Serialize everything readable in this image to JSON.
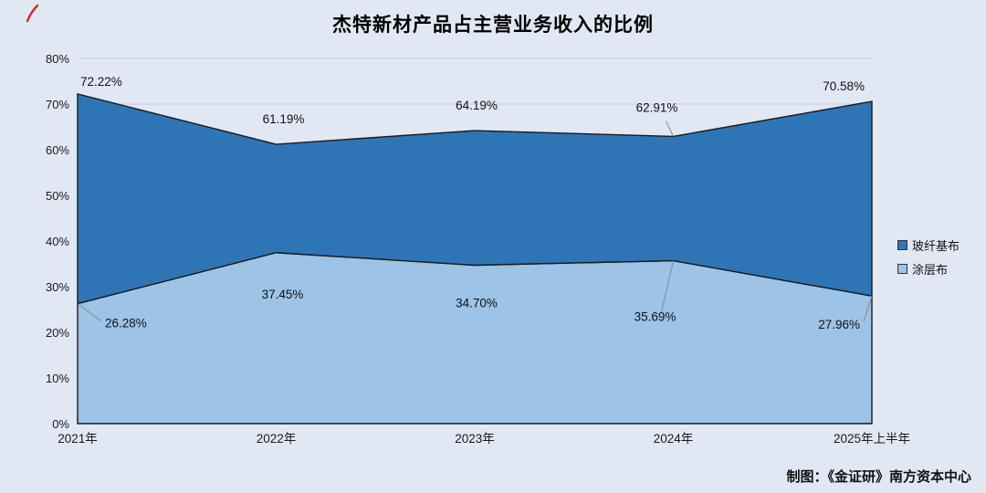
{
  "title": "杰特新材产品占主营业务收入的比例",
  "credit": "制图：《金证研》南方资本中心",
  "colors": {
    "background": "#e1e8f4",
    "grid": "#c7d0e2",
    "line": "#1a1a1a",
    "leader": "#808a99",
    "accent_red": "#d6281e"
  },
  "chart_data": {
    "type": "area",
    "title": "杰特新材产品占主营业务收入的比例",
    "categories": [
      "2021年",
      "2022年",
      "2023年",
      "2024年",
      "2025年上半年"
    ],
    "series": [
      {
        "name": "玻纤基布",
        "color": "#2e75b6",
        "values": [
          72.22,
          61.19,
          64.19,
          62.91,
          70.58
        ],
        "labels": [
          "72.22%",
          "61.19%",
          "64.19%",
          "62.91%",
          "70.58%"
        ]
      },
      {
        "name": "涂层布",
        "color": "#9dc3e6",
        "values": [
          26.28,
          37.45,
          34.7,
          35.69,
          27.96
        ],
        "labels": [
          "26.28%",
          "37.45%",
          "34.70%",
          "35.69%",
          "27.96%"
        ]
      }
    ],
    "ylim": [
      0,
      80
    ],
    "ytick_step": 10,
    "ytick_suffix": "%",
    "grid": true,
    "legend_position": "right"
  }
}
